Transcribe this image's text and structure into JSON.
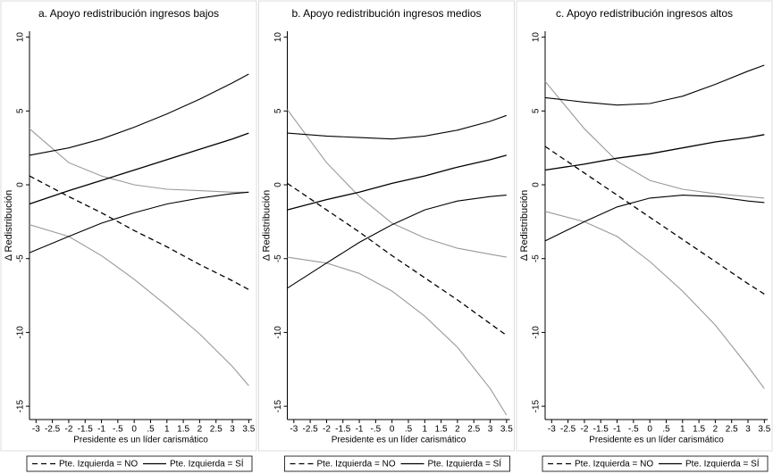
{
  "chart_data": [
    {
      "type": "line",
      "title": "a. Apoyo redistribución ingresos bajos",
      "xlabel": "Presidente es un líder carismático",
      "ylabel": "Δ Redistribución",
      "x": [
        -3.2,
        -2,
        -1,
        0,
        1,
        2,
        3,
        3.5
      ],
      "xlim": [
        -3.2,
        3.6
      ],
      "ylim": [
        -15.9,
        10.4
      ],
      "xticks": [
        -3,
        -2.5,
        -2,
        -1.5,
        -1,
        {
          "value": -0.5,
          "label": "-.5"
        },
        0,
        {
          "value": 0.5,
          "label": ".5"
        },
        1,
        1.5,
        2,
        2.5,
        3,
        3.5
      ],
      "yticks": [
        -15,
        -10,
        -5,
        0,
        5,
        10
      ],
      "series": [
        {
          "name": "Pte. Izquierda = NO",
          "color": "#000000",
          "dashed": true,
          "ci_color": "#999999",
          "values": [
            0.6,
            -0.8,
            -1.9,
            -3.1,
            -4.2,
            -5.4,
            -6.5,
            -7.1
          ],
          "ci_upper": [
            3.8,
            1.5,
            0.6,
            0.0,
            -0.3,
            -0.4,
            -0.5,
            -0.5
          ],
          "ci_lower": [
            -2.7,
            -3.5,
            -4.8,
            -6.4,
            -8.2,
            -10.1,
            -12.3,
            -13.6
          ]
        },
        {
          "name": "Pte. Izquierda = SÍ",
          "color": "#000000",
          "dashed": false,
          "ci_color": "#000000",
          "values": [
            -1.3,
            -0.4,
            0.3,
            1.0,
            1.7,
            2.4,
            3.1,
            3.5
          ],
          "ci_upper": [
            2.0,
            2.5,
            3.1,
            3.9,
            4.8,
            5.8,
            6.9,
            7.5
          ],
          "ci_lower": [
            -4.6,
            -3.5,
            -2.6,
            -1.9,
            -1.3,
            -0.9,
            -0.6,
            -0.5
          ]
        }
      ]
    },
    {
      "type": "line",
      "title": "b. Apoyo redistribución ingresos medios",
      "xlabel": "Presidente es un líder carismático",
      "ylabel": "Δ Redistribución",
      "x": [
        -3.2,
        -2,
        -1,
        0,
        1,
        2,
        3,
        3.5
      ],
      "xlim": [
        -3.2,
        3.6
      ],
      "ylim": [
        -15.9,
        10.4
      ],
      "xticks": [
        -3,
        -2.5,
        -2,
        -1.5,
        -1,
        {
          "value": -0.5,
          "label": "-.5"
        },
        0,
        {
          "value": 0.5,
          "label": ".5"
        },
        1,
        1.5,
        2,
        2.5,
        3,
        3.5
      ],
      "yticks": [
        -15,
        -10,
        -5,
        0,
        5,
        10
      ],
      "series": [
        {
          "name": "Pte. Izquierda = NO",
          "color": "#000000",
          "dashed": true,
          "ci_color": "#999999",
          "values": [
            0.1,
            -1.7,
            -3.2,
            -4.8,
            -6.3,
            -7.8,
            -9.4,
            -10.2
          ],
          "ci_upper": [
            5.1,
            1.5,
            -0.8,
            -2.6,
            -3.6,
            -4.3,
            -4.7,
            -4.9
          ],
          "ci_lower": [
            -4.9,
            -5.3,
            -6.0,
            -7.2,
            -8.9,
            -11.0,
            -13.8,
            -15.6
          ]
        },
        {
          "name": "Pte. Izquierda = SÍ",
          "color": "#000000",
          "dashed": false,
          "ci_color": "#000000",
          "values": [
            -1.7,
            -1.0,
            -0.5,
            0.1,
            0.6,
            1.2,
            1.7,
            2.0
          ],
          "ci_upper": [
            3.5,
            3.3,
            3.2,
            3.1,
            3.3,
            3.7,
            4.3,
            4.7
          ],
          "ci_lower": [
            -7.0,
            -5.3,
            -3.9,
            -2.7,
            -1.7,
            -1.1,
            -0.8,
            -0.7
          ]
        }
      ]
    },
    {
      "type": "line",
      "title": "c. Apoyo redistribución ingresos altos",
      "xlabel": "Presidente es un líder carismático",
      "ylabel": "Δ Redistribución",
      "x": [
        -3.2,
        -2,
        -1,
        0,
        1,
        2,
        3,
        3.5
      ],
      "xlim": [
        -3.2,
        3.6
      ],
      "ylim": [
        -15.9,
        10.4
      ],
      "xticks": [
        -3,
        -2.5,
        -2,
        -1.5,
        -1,
        {
          "value": -0.5,
          "label": "-.5"
        },
        0,
        {
          "value": 0.5,
          "label": ".5"
        },
        1,
        1.5,
        2,
        2.5,
        3,
        3.5
      ],
      "yticks": [
        -15,
        -10,
        -5,
        0,
        5,
        10
      ],
      "series": [
        {
          "name": "Pte. Izquierda = NO",
          "color": "#000000",
          "dashed": true,
          "ci_color": "#999999",
          "values": [
            2.6,
            0.8,
            -0.7,
            -2.2,
            -3.7,
            -5.2,
            -6.7,
            -7.4
          ],
          "ci_upper": [
            7.0,
            3.8,
            1.6,
            0.3,
            -0.3,
            -0.6,
            -0.8,
            -0.9
          ],
          "ci_lower": [
            -1.8,
            -2.5,
            -3.5,
            -5.2,
            -7.2,
            -9.5,
            -12.3,
            -13.8
          ]
        },
        {
          "name": "Pte. Izquierda = SÍ",
          "color": "#000000",
          "dashed": false,
          "ci_color": "#000000",
          "values": [
            1.0,
            1.4,
            1.8,
            2.1,
            2.5,
            2.9,
            3.2,
            3.4
          ],
          "ci_upper": [
            5.9,
            5.6,
            5.4,
            5.5,
            6.0,
            6.8,
            7.7,
            8.1
          ],
          "ci_lower": [
            -3.8,
            -2.5,
            -1.5,
            -0.9,
            -0.7,
            -0.8,
            -1.1,
            -1.2
          ]
        }
      ]
    }
  ]
}
